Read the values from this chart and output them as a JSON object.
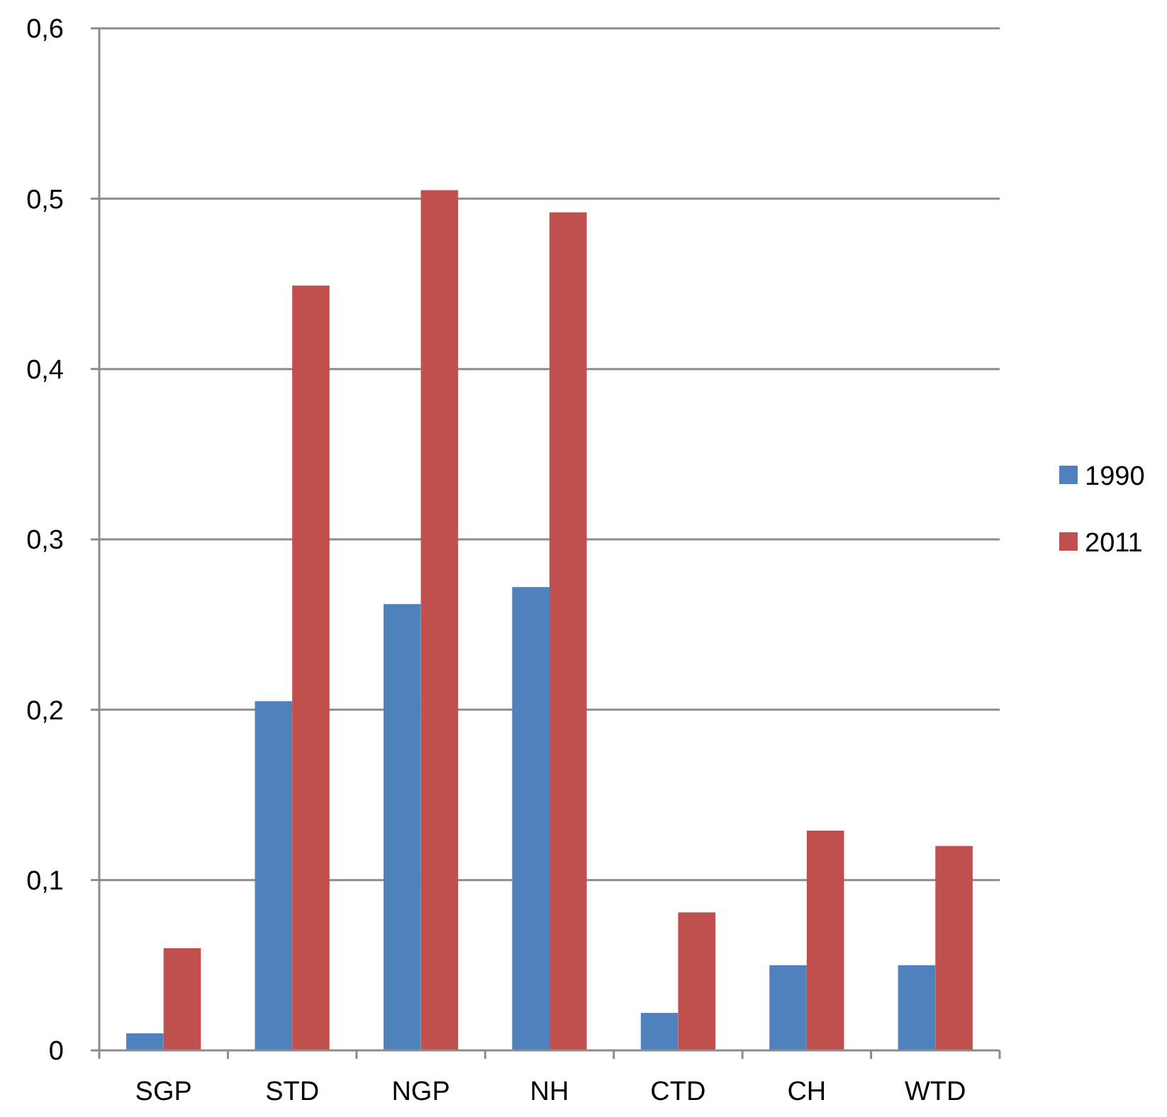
{
  "chart_data": {
    "type": "bar",
    "categories": [
      "SGP",
      "STD",
      "NGP",
      "NH",
      "CTD",
      "CH",
      "WTD"
    ],
    "series": [
      {
        "name": "1990",
        "color": "#4f81bd",
        "values": [
          0.01,
          0.205,
          0.262,
          0.272,
          0.022,
          0.05,
          0.05
        ]
      },
      {
        "name": "2011",
        "color": "#c0504d",
        "values": [
          0.06,
          0.449,
          0.505,
          0.492,
          0.081,
          0.129,
          0.12
        ]
      }
    ],
    "ylim": [
      0,
      0.6
    ],
    "yticks": [
      {
        "value": 0,
        "label": "0"
      },
      {
        "value": 0.1,
        "label": "0,1"
      },
      {
        "value": 0.2,
        "label": "0,2"
      },
      {
        "value": 0.3,
        "label": "0,3"
      },
      {
        "value": 0.4,
        "label": "0,4"
      },
      {
        "value": 0.5,
        "label": "0,5"
      },
      {
        "value": 0.6,
        "label": "0,6"
      }
    ],
    "grid": "y",
    "legend": "right"
  }
}
